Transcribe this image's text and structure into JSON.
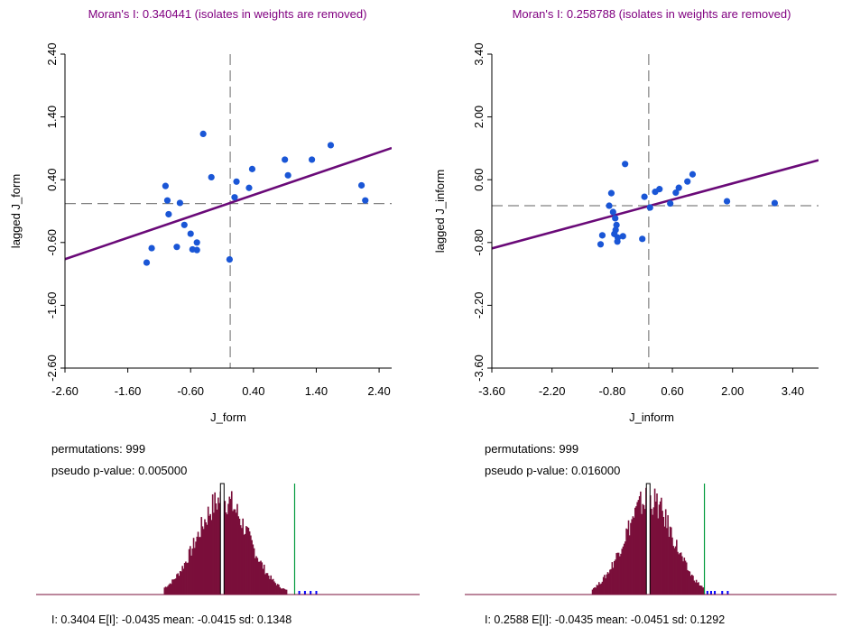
{
  "colors": {
    "title": "#800080",
    "points": "#1a56d6",
    "fit_line": "#6a0a78",
    "dashed": "#808080",
    "hist_bar": "#7a0f3a",
    "hist_tail": "#0000ff",
    "observed_line": "#009a3c",
    "mean_bar_fill": "#ffffff"
  },
  "chart_data": [
    {
      "type": "scatter",
      "title": "Moran's I: 0.340441 (isolates in weights are removed)",
      "xlabel": "J_form",
      "ylabel": "lagged J_form",
      "xlim": [
        -2.6,
        2.6
      ],
      "ylim": [
        -2.6,
        2.4
      ],
      "xticks": [
        "-2.60",
        "-1.60",
        "-0.60",
        "0.40",
        "1.40",
        "2.40"
      ],
      "yticks": [
        "-2.60",
        "-1.60",
        "-0.60",
        "0.40",
        "1.40",
        "2.40"
      ],
      "slope": 0.3404,
      "intercept": 0.02,
      "ref_x": 0.03,
      "ref_y": 0.02,
      "points": [
        [
          -0.4,
          1.13
        ],
        [
          1.63,
          0.95
        ],
        [
          1.33,
          0.72
        ],
        [
          0.9,
          0.72
        ],
        [
          0.95,
          0.47
        ],
        [
          0.38,
          0.57
        ],
        [
          -0.27,
          0.44
        ],
        [
          0.13,
          0.37
        ],
        [
          0.33,
          0.27
        ],
        [
          2.12,
          0.31
        ],
        [
          -1.0,
          0.3
        ],
        [
          -0.77,
          0.03
        ],
        [
          -0.97,
          0.07
        ],
        [
          2.18,
          0.07
        ],
        [
          0.1,
          0.12
        ],
        [
          -0.95,
          -0.15
        ],
        [
          -0.7,
          -0.32
        ],
        [
          -0.6,
          -0.46
        ],
        [
          -0.5,
          -0.6
        ],
        [
          -0.82,
          -0.67
        ],
        [
          -0.57,
          -0.71
        ],
        [
          -0.5,
          -0.72
        ],
        [
          -1.22,
          -0.69
        ],
        [
          -1.3,
          -0.92
        ],
        [
          0.02,
          -0.87
        ]
      ],
      "histogram": {
        "permutations_label": "permutations: 999",
        "pvalue_label": "pseudo p-value: 0.005000",
        "stats_label": "I: 0.3404   E[I]: -0.0435  mean: -0.0415  sd: 0.1348",
        "observed": 0.3404,
        "mean": -0.0415,
        "sd": 0.1348,
        "tail_points": [
          0.36,
          0.39,
          0.42,
          0.45
        ]
      }
    },
    {
      "type": "scatter",
      "title": "Moran's I: 0.258788 (isolates in weights are removed)",
      "xlabel": "J_inform",
      "ylabel": "lagged J_inform",
      "xlim": [
        -3.6,
        4.0
      ],
      "ylim": [
        -3.6,
        3.4
      ],
      "xticks": [
        "-3.60",
        "-2.20",
        "-0.80",
        "0.60",
        "2.00",
        "3.40"
      ],
      "yticks": [
        "-3.60",
        "-2.20",
        "-0.80",
        "0.60",
        "2.00",
        "3.40"
      ],
      "slope": 0.2588,
      "intercept": 0.0,
      "ref_x": 0.05,
      "ref_y": 0.02,
      "points": [
        [
          -0.5,
          0.95
        ],
        [
          1.07,
          0.72
        ],
        [
          0.95,
          0.56
        ],
        [
          0.75,
          0.42
        ],
        [
          0.68,
          0.31
        ],
        [
          0.3,
          0.39
        ],
        [
          0.2,
          0.33
        ],
        [
          -0.05,
          0.22
        ],
        [
          -0.82,
          0.3
        ],
        [
          0.55,
          0.07
        ],
        [
          -0.87,
          0.02
        ],
        [
          1.87,
          0.12
        ],
        [
          2.98,
          0.08
        ],
        [
          0.08,
          -0.02
        ],
        [
          -0.78,
          -0.12
        ],
        [
          -0.73,
          -0.26
        ],
        [
          -0.7,
          -0.41
        ],
        [
          -0.72,
          -0.52
        ],
        [
          -0.75,
          -0.61
        ],
        [
          -0.67,
          -0.69
        ],
        [
          -0.55,
          -0.66
        ],
        [
          -1.03,
          -0.64
        ],
        [
          -0.1,
          -0.72
        ],
        [
          -0.68,
          -0.78
        ],
        [
          -1.07,
          -0.84
        ]
      ],
      "histogram": {
        "permutations_label": "permutations: 999",
        "pvalue_label": "pseudo p-value: 0.016000",
        "stats_label": "I: 0.2588   E[I]: -0.0435  mean: -0.0451  sd: 0.1292",
        "observed": 0.2588,
        "mean": -0.0451,
        "sd": 0.1292,
        "tail_points": [
          0.27,
          0.29,
          0.31,
          0.35,
          0.38
        ]
      }
    }
  ]
}
